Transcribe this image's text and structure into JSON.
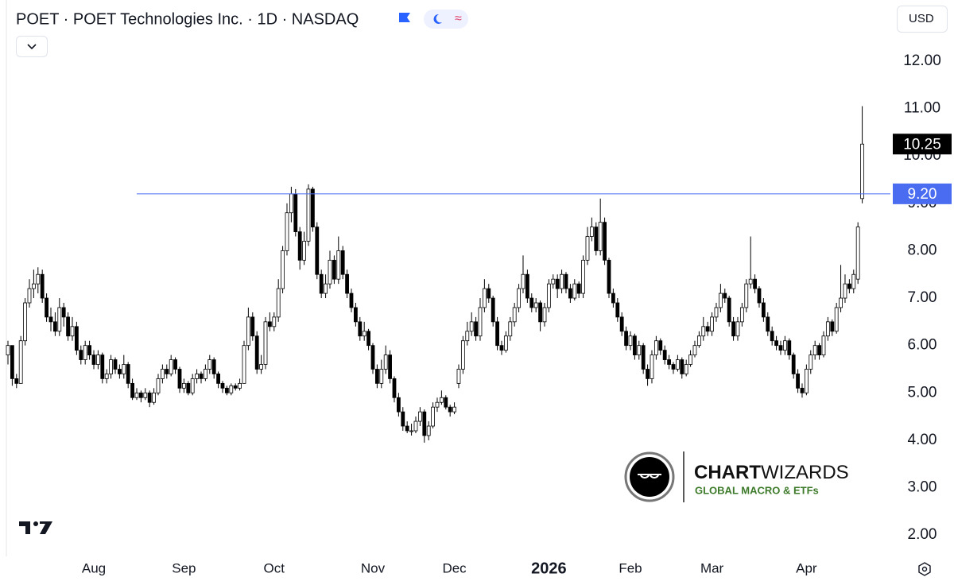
{
  "chart_data": {
    "type": "candlestick",
    "title": "POET · POET Technologies Inc. · 1D · NASDAQ",
    "currency": "USD",
    "colors": {
      "up": "#ffffff",
      "down": "#000000",
      "wick": "#000000"
    },
    "grid": false,
    "ylim": [
      1.55,
      13.29
    ],
    "yticks": [
      {
        "value": 2,
        "label": "2.00"
      },
      {
        "value": 3,
        "label": "3.00"
      },
      {
        "value": 4,
        "label": "4.00"
      },
      {
        "value": 5,
        "label": "5.00"
      },
      {
        "value": 6,
        "label": "6.00"
      },
      {
        "value": 7,
        "label": "7.00"
      },
      {
        "value": 8,
        "label": "8.00"
      },
      {
        "value": 9,
        "label": "9.00"
      },
      {
        "value": 10,
        "label": "10.00"
      },
      {
        "value": 11,
        "label": "11.00"
      },
      {
        "value": 12,
        "label": "12.00"
      }
    ],
    "xlim": [
      -1.85,
      205.56
    ],
    "xticks": [
      {
        "value": 20,
        "label": "Aug"
      },
      {
        "value": 41,
        "label": "Sep"
      },
      {
        "value": 62,
        "label": "Oct"
      },
      {
        "value": 85,
        "label": "Nov"
      },
      {
        "value": 104,
        "label": "Dec"
      },
      {
        "value": 126,
        "label": "2026"
      },
      {
        "value": 145,
        "label": "Feb"
      },
      {
        "value": 164,
        "label": "Mar"
      },
      {
        "value": 186,
        "label": "Apr"
      }
    ],
    "hline": {
      "value": 9.2,
      "label": "9.20",
      "color": "#4a6cf0"
    },
    "watermark": {
      "brand_bold": "CHART",
      "brand_light": "WIZARDS",
      "tagline": "GLOBAL MACRO & ETFs"
    },
    "candles": [
      [
        5.8,
        6.1,
        5.6,
        6.0
      ],
      [
        6.0,
        6.0,
        5.15,
        5.3
      ],
      [
        5.3,
        5.4,
        5.1,
        5.2
      ],
      [
        5.2,
        6.2,
        5.2,
        6.1
      ],
      [
        6.1,
        7.0,
        6.0,
        6.9
      ],
      [
        6.9,
        7.4,
        6.8,
        7.2
      ],
      [
        7.2,
        7.6,
        7.0,
        7.3
      ],
      [
        7.3,
        7.65,
        7.1,
        7.5
      ],
      [
        7.5,
        7.6,
        6.9,
        7.0
      ],
      [
        7.0,
        7.1,
        6.5,
        6.6
      ],
      [
        6.6,
        6.8,
        6.3,
        6.5
      ],
      [
        6.5,
        6.7,
        6.2,
        6.3
      ],
      [
        6.3,
        7.0,
        6.2,
        6.8
      ],
      [
        6.8,
        6.9,
        6.4,
        6.6
      ],
      [
        6.6,
        6.7,
        6.1,
        6.2
      ],
      [
        6.2,
        6.6,
        6.1,
        6.4
      ],
      [
        6.4,
        6.5,
        5.8,
        5.9
      ],
      [
        5.9,
        6.0,
        5.6,
        5.7
      ],
      [
        5.7,
        6.1,
        5.6,
        6.0
      ],
      [
        6.0,
        6.1,
        5.7,
        5.8
      ],
      [
        5.8,
        5.9,
        5.5,
        5.6
      ],
      [
        5.6,
        5.9,
        5.5,
        5.8
      ],
      [
        5.8,
        5.85,
        5.2,
        5.3
      ],
      [
        5.3,
        5.5,
        5.2,
        5.4
      ],
      [
        5.4,
        5.8,
        5.3,
        5.7
      ],
      [
        5.7,
        5.75,
        5.4,
        5.5
      ],
      [
        5.5,
        5.6,
        5.3,
        5.4
      ],
      [
        5.4,
        5.8,
        5.3,
        5.6
      ],
      [
        5.6,
        5.65,
        5.1,
        5.2
      ],
      [
        5.2,
        5.3,
        4.85,
        4.9
      ],
      [
        4.9,
        5.1,
        4.85,
        5.0
      ],
      [
        5.0,
        5.05,
        4.8,
        4.9
      ],
      [
        4.9,
        5.1,
        4.85,
        5.0
      ],
      [
        5.0,
        5.05,
        4.7,
        4.8
      ],
      [
        4.8,
        5.1,
        4.75,
        5.0
      ],
      [
        5.0,
        5.4,
        4.95,
        5.3
      ],
      [
        5.3,
        5.6,
        5.2,
        5.5
      ],
      [
        5.5,
        5.6,
        5.3,
        5.4
      ],
      [
        5.4,
        5.8,
        5.35,
        5.7
      ],
      [
        5.7,
        5.75,
        5.4,
        5.5
      ],
      [
        5.5,
        5.55,
        5.0,
        5.1
      ],
      [
        5.1,
        5.3,
        5.0,
        5.2
      ],
      [
        5.2,
        5.25,
        4.95,
        5.0
      ],
      [
        5.0,
        5.4,
        4.95,
        5.3
      ],
      [
        5.3,
        5.5,
        5.2,
        5.4
      ],
      [
        5.4,
        5.45,
        5.2,
        5.3
      ],
      [
        5.3,
        5.6,
        5.25,
        5.5
      ],
      [
        5.5,
        5.8,
        5.4,
        5.7
      ],
      [
        5.7,
        5.75,
        5.3,
        5.4
      ],
      [
        5.4,
        5.45,
        5.1,
        5.2
      ],
      [
        5.2,
        5.25,
        5.0,
        5.1
      ],
      [
        5.1,
        5.15,
        4.95,
        5.0
      ],
      [
        5.0,
        5.2,
        4.95,
        5.15
      ],
      [
        5.15,
        5.2,
        5.05,
        5.1
      ],
      [
        5.1,
        5.3,
        5.05,
        5.2
      ],
      [
        5.2,
        6.1,
        5.2,
        6.0
      ],
      [
        6.0,
        6.8,
        5.9,
        6.6
      ],
      [
        6.6,
        6.7,
        6.1,
        6.2
      ],
      [
        6.2,
        6.3,
        5.4,
        5.5
      ],
      [
        5.5,
        5.8,
        5.4,
        5.6
      ],
      [
        5.6,
        6.6,
        5.5,
        6.5
      ],
      [
        6.5,
        6.7,
        6.3,
        6.4
      ],
      [
        6.4,
        6.7,
        6.3,
        6.6
      ],
      [
        6.6,
        7.4,
        6.5,
        7.2
      ],
      [
        7.2,
        8.1,
        7.1,
        8.0
      ],
      [
        8.0,
        9.0,
        7.9,
        8.8
      ],
      [
        8.8,
        9.35,
        8.6,
        9.2
      ],
      [
        9.2,
        9.3,
        8.3,
        8.4
      ],
      [
        8.4,
        8.5,
        7.6,
        7.8
      ],
      [
        7.8,
        8.4,
        7.7,
        8.2
      ],
      [
        8.2,
        9.4,
        8.1,
        9.3
      ],
      [
        9.3,
        9.35,
        8.4,
        8.5
      ],
      [
        8.5,
        8.6,
        7.4,
        7.5
      ],
      [
        7.5,
        7.6,
        7.0,
        7.1
      ],
      [
        7.1,
        7.5,
        7.0,
        7.3
      ],
      [
        7.3,
        8.0,
        7.2,
        7.8
      ],
      [
        7.8,
        7.9,
        7.3,
        7.4
      ],
      [
        7.4,
        8.3,
        7.3,
        8.0
      ],
      [
        8.0,
        8.1,
        7.4,
        7.5
      ],
      [
        7.5,
        7.6,
        7.0,
        7.1
      ],
      [
        7.1,
        7.2,
        6.7,
        6.8
      ],
      [
        6.8,
        6.9,
        6.4,
        6.5
      ],
      [
        6.5,
        6.6,
        6.1,
        6.2
      ],
      [
        6.2,
        6.5,
        6.1,
        6.3
      ],
      [
        6.3,
        6.35,
        5.9,
        6.0
      ],
      [
        6.0,
        6.05,
        5.4,
        5.5
      ],
      [
        5.5,
        5.6,
        5.1,
        5.2
      ],
      [
        5.2,
        5.7,
        5.1,
        5.5
      ],
      [
        5.5,
        6.0,
        5.4,
        5.8
      ],
      [
        5.8,
        5.9,
        5.2,
        5.3
      ],
      [
        5.3,
        5.35,
        4.8,
        4.9
      ],
      [
        4.9,
        5.0,
        4.5,
        4.6
      ],
      [
        4.6,
        4.7,
        4.2,
        4.3
      ],
      [
        4.3,
        4.4,
        4.15,
        4.2
      ],
      [
        4.2,
        4.35,
        4.1,
        4.2
      ],
      [
        4.2,
        4.5,
        4.15,
        4.4
      ],
      [
        4.4,
        4.7,
        4.3,
        4.6
      ],
      [
        4.6,
        4.65,
        3.95,
        4.1
      ],
      [
        4.1,
        4.4,
        4.0,
        4.3
      ],
      [
        4.3,
        4.8,
        4.25,
        4.7
      ],
      [
        4.7,
        4.9,
        4.6,
        4.8
      ],
      [
        4.8,
        5.05,
        4.75,
        4.9
      ],
      [
        4.9,
        4.95,
        4.65,
        4.7
      ],
      [
        4.7,
        4.75,
        4.5,
        4.6
      ],
      [
        4.6,
        4.8,
        4.55,
        4.7
      ],
      [
        5.2,
        5.6,
        5.1,
        5.5
      ],
      [
        5.5,
        6.2,
        5.4,
        6.1
      ],
      [
        6.1,
        6.5,
        6.0,
        6.3
      ],
      [
        6.3,
        6.7,
        6.2,
        6.5
      ],
      [
        6.5,
        6.6,
        6.1,
        6.2
      ],
      [
        6.2,
        7.0,
        6.1,
        6.8
      ],
      [
        6.8,
        7.4,
        6.7,
        7.2
      ],
      [
        7.2,
        7.3,
        6.9,
        7.0
      ],
      [
        7.0,
        7.05,
        6.4,
        6.5
      ],
      [
        6.5,
        6.6,
        5.9,
        6.0
      ],
      [
        6.0,
        6.1,
        5.8,
        5.9
      ],
      [
        5.9,
        6.3,
        5.85,
        6.2
      ],
      [
        6.2,
        6.6,
        6.1,
        6.5
      ],
      [
        6.5,
        6.9,
        6.4,
        6.8
      ],
      [
        6.8,
        7.3,
        6.7,
        7.2
      ],
      [
        7.2,
        7.9,
        7.1,
        7.5
      ],
      [
        7.5,
        7.6,
        6.9,
        7.0
      ],
      [
        7.0,
        7.1,
        6.7,
        6.8
      ],
      [
        6.8,
        7.0,
        6.7,
        6.9
      ],
      [
        6.9,
        6.95,
        6.3,
        6.5
      ],
      [
        6.5,
        6.9,
        6.4,
        6.8
      ],
      [
        6.8,
        7.4,
        6.7,
        7.3
      ],
      [
        7.3,
        7.5,
        7.2,
        7.4
      ],
      [
        7.4,
        7.5,
        7.0,
        7.2
      ],
      [
        7.2,
        7.6,
        7.1,
        7.5
      ],
      [
        7.5,
        7.55,
        7.1,
        7.2
      ],
      [
        7.2,
        7.3,
        6.9,
        7.0
      ],
      [
        7.0,
        7.4,
        6.95,
        7.3
      ],
      [
        7.3,
        7.35,
        7.0,
        7.1
      ],
      [
        7.1,
        7.9,
        7.0,
        7.8
      ],
      [
        7.8,
        8.5,
        7.7,
        8.3
      ],
      [
        8.3,
        8.7,
        8.2,
        8.5
      ],
      [
        8.5,
        8.6,
        7.9,
        8.0
      ],
      [
        8.0,
        9.1,
        7.9,
        8.6
      ],
      [
        8.6,
        8.7,
        7.7,
        7.8
      ],
      [
        7.8,
        7.85,
        7.0,
        7.1
      ],
      [
        7.1,
        7.2,
        6.8,
        6.9
      ],
      [
        6.9,
        7.0,
        6.5,
        6.6
      ],
      [
        6.6,
        6.7,
        6.2,
        6.3
      ],
      [
        6.3,
        6.4,
        5.9,
        6.0
      ],
      [
        6.0,
        6.3,
        5.9,
        6.2
      ],
      [
        6.2,
        6.25,
        5.7,
        5.8
      ],
      [
        5.8,
        6.1,
        5.7,
        6.0
      ],
      [
        6.0,
        6.05,
        5.4,
        5.5
      ],
      [
        5.5,
        5.6,
        5.15,
        5.3
      ],
      [
        5.3,
        5.9,
        5.2,
        5.8
      ],
      [
        5.8,
        6.2,
        5.7,
        6.1
      ],
      [
        6.1,
        6.15,
        5.8,
        5.9
      ],
      [
        5.9,
        6.0,
        5.6,
        5.7
      ],
      [
        5.7,
        5.8,
        5.5,
        5.6
      ],
      [
        5.6,
        5.65,
        5.4,
        5.5
      ],
      [
        5.5,
        5.8,
        5.45,
        5.7
      ],
      [
        5.7,
        5.75,
        5.3,
        5.4
      ],
      [
        5.4,
        5.7,
        5.35,
        5.6
      ],
      [
        5.6,
        5.9,
        5.55,
        5.8
      ],
      [
        5.8,
        6.1,
        5.75,
        6.0
      ],
      [
        6.0,
        6.3,
        5.95,
        6.2
      ],
      [
        6.2,
        6.6,
        6.1,
        6.4
      ],
      [
        6.4,
        6.5,
        6.2,
        6.3
      ],
      [
        6.3,
        6.7,
        6.2,
        6.6
      ],
      [
        6.6,
        6.9,
        6.5,
        6.8
      ],
      [
        6.8,
        7.3,
        6.7,
        7.1
      ],
      [
        7.1,
        7.2,
        6.9,
        7.0
      ],
      [
        7.0,
        7.05,
        6.4,
        6.5
      ],
      [
        6.5,
        6.6,
        6.1,
        6.2
      ],
      [
        6.2,
        6.6,
        6.1,
        6.5
      ],
      [
        6.5,
        6.9,
        6.4,
        6.8
      ],
      [
        6.8,
        7.4,
        6.7,
        7.3
      ],
      [
        7.3,
        8.3,
        7.2,
        7.4
      ],
      [
        7.4,
        7.5,
        7.1,
        7.2
      ],
      [
        7.2,
        7.25,
        6.8,
        6.9
      ],
      [
        6.9,
        7.0,
        6.5,
        6.6
      ],
      [
        6.6,
        6.7,
        6.2,
        6.3
      ],
      [
        6.3,
        6.4,
        6.0,
        6.1
      ],
      [
        6.1,
        6.2,
        5.9,
        6.0
      ],
      [
        6.0,
        6.1,
        5.8,
        5.9
      ],
      [
        5.9,
        6.2,
        5.8,
        6.1
      ],
      [
        6.1,
        6.15,
        5.7,
        5.8
      ],
      [
        5.8,
        5.85,
        5.3,
        5.4
      ],
      [
        5.4,
        5.5,
        5.0,
        5.1
      ],
      [
        5.1,
        5.2,
        4.9,
        5.0
      ],
      [
        5.0,
        5.6,
        4.95,
        5.5
      ],
      [
        5.5,
        5.9,
        5.4,
        5.8
      ],
      [
        5.8,
        6.1,
        5.7,
        6.0
      ],
      [
        6.0,
        6.05,
        5.7,
        5.8
      ],
      [
        5.8,
        6.3,
        5.75,
        6.2
      ],
      [
        6.2,
        6.6,
        6.1,
        6.5
      ],
      [
        6.5,
        6.55,
        6.2,
        6.3
      ],
      [
        6.3,
        6.9,
        6.25,
        6.8
      ],
      [
        6.8,
        7.7,
        6.7,
        7.0
      ],
      [
        7.0,
        7.5,
        6.9,
        7.3
      ],
      [
        7.3,
        7.4,
        7.1,
        7.2
      ],
      [
        7.2,
        7.6,
        7.1,
        7.5
      ],
      [
        7.4,
        8.6,
        7.3,
        8.5
      ],
      [
        9.1,
        11.05,
        9.0,
        10.25
      ]
    ]
  }
}
